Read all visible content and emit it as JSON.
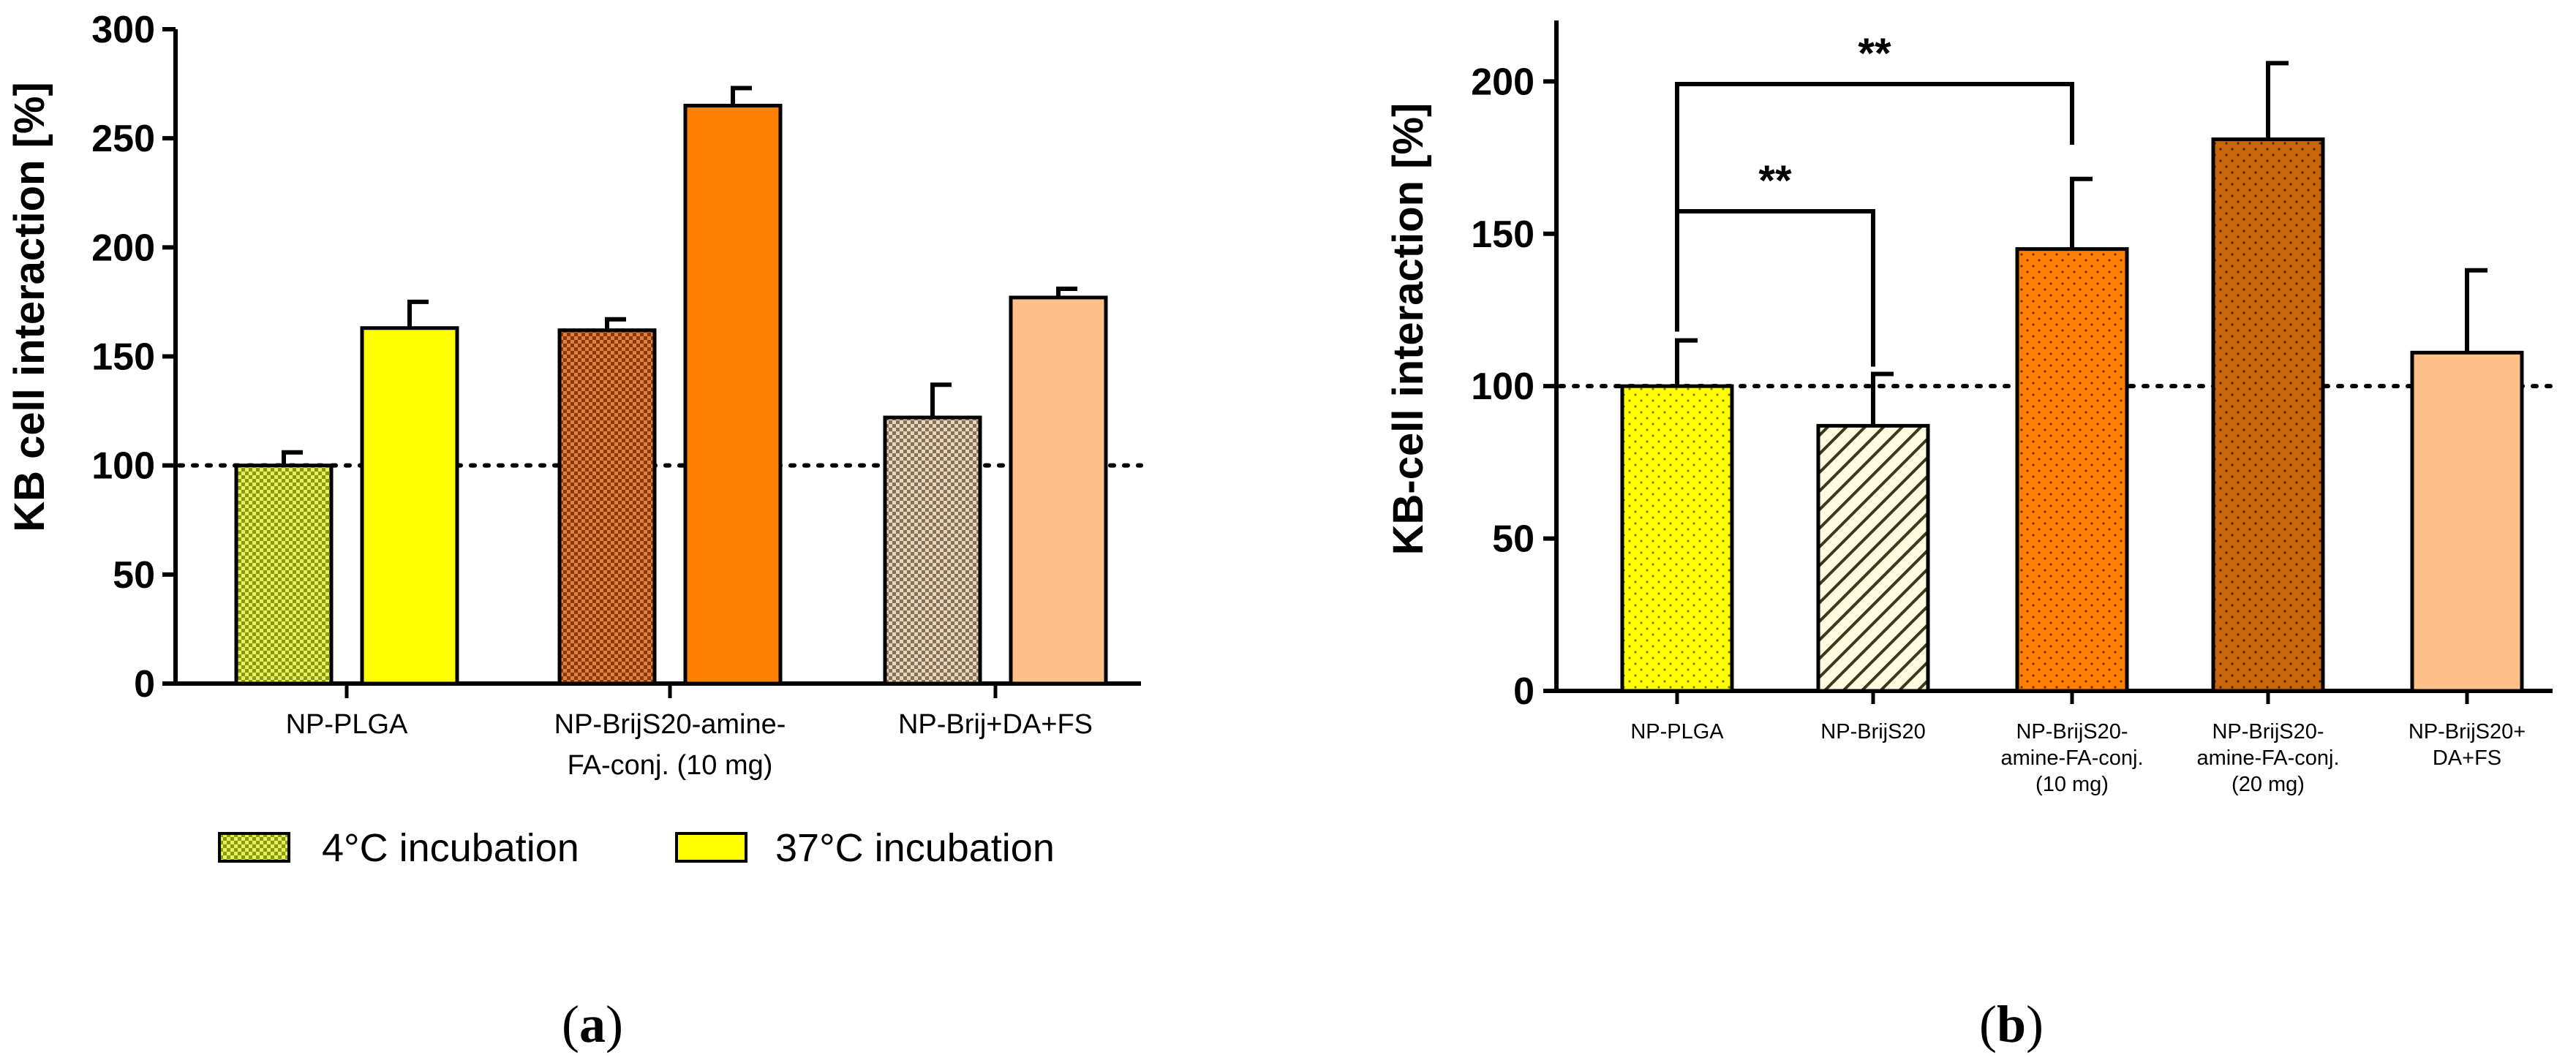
{
  "chart_data": [
    {
      "panel": "a",
      "type": "bar",
      "title": "",
      "xlabel": "",
      "ylabel": "KB cell interaction [%]",
      "ylim": [
        0,
        300
      ],
      "yticks": [
        "0",
        "50",
        "100",
        "150",
        "200",
        "250",
        "300"
      ],
      "reference_line": 100,
      "categories": [
        {
          "lines": [
            "NP-PLGA"
          ]
        },
        {
          "lines": [
            "NP-BrijS20-amine-",
            "FA-conj. (10 mg)"
          ]
        },
        {
          "lines": [
            "NP-Brij+DA+FS"
          ]
        }
      ],
      "series": [
        {
          "name": "4°C incubation",
          "values": [
            100,
            162,
            122
          ],
          "errors": [
            6,
            5,
            15
          ]
        },
        {
          "name": "37°C incubation",
          "values": [
            163,
            265,
            177
          ],
          "errors": [
            12,
            8,
            4
          ]
        }
      ],
      "bar_colors": [
        [
          "#c8e04a",
          "#ffff00"
        ],
        [
          "#c65a12",
          "#ff7f00"
        ],
        [
          "#cfb9a0",
          "#ffc08a"
        ]
      ],
      "legend_placement": "bottom",
      "panel_label": "a"
    },
    {
      "panel": "b",
      "type": "bar",
      "title": "",
      "xlabel": "",
      "ylabel": "KB-cell interaction [%]",
      "ylim": [
        0,
        220
      ],
      "yticks": [
        "0",
        "50",
        "100",
        "150",
        "200"
      ],
      "reference_line": 100,
      "categories": [
        {
          "lines": [
            "NP-PLGA"
          ]
        },
        {
          "lines": [
            "NP-BrijS20"
          ]
        },
        {
          "lines": [
            "NP-BrijS20-",
            "amine-FA-conj.",
            "(10 mg)"
          ]
        },
        {
          "lines": [
            "NP-BrijS20-",
            "amine-FA-conj.",
            "(20 mg)"
          ]
        },
        {
          "lines": [
            "NP-BrijS20+",
            "DA+FS"
          ]
        }
      ],
      "values": [
        100,
        87,
        145,
        181,
        111
      ],
      "errors": [
        15,
        17,
        23,
        25,
        27
      ],
      "bar_colors": [
        "#ffff00",
        "#fffbe0",
        "#ff7f00",
        "#c8660a",
        "#ffc08a"
      ],
      "significance": [
        {
          "from": "NP-PLGA",
          "to": "NP-BrijS20",
          "label": "**"
        },
        {
          "from": "NP-PLGA",
          "to": "NP-BrijS20-amine-FA-conj. (10 mg)",
          "label": "**"
        }
      ],
      "panel_label": "b"
    }
  ]
}
